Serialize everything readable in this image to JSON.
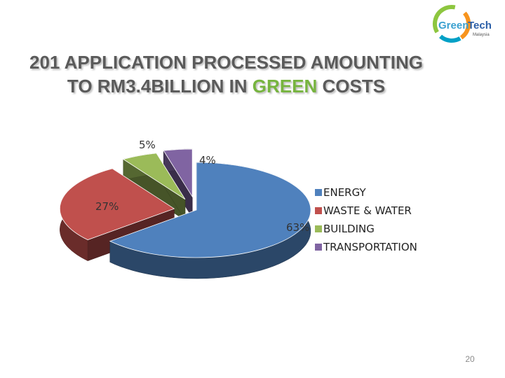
{
  "logo": {
    "line1": "Green",
    "line2": "Tech",
    "line3": "Malaysia"
  },
  "title": {
    "line1": "201 APPLICATION PROCESSED AMOUNTING",
    "line2_before": "TO RM3.4BILLION IN ",
    "line2_accent": "GREEN",
    "line2_after": " COSTS"
  },
  "chart_data": {
    "type": "pie",
    "title": "",
    "categories": [
      "ENERGY",
      "WASTE & WATER",
      "BUILDING",
      "TRANSPORTATION"
    ],
    "values": [
      63,
      27,
      5,
      4
    ],
    "labels": [
      "63%",
      "27%",
      "5%",
      "4%"
    ],
    "colors": [
      "#4f81bd",
      "#c0504d",
      "#9bbb59",
      "#8064a2"
    ],
    "legend_position": "right",
    "style": "3d-exploded"
  },
  "page_number": "20"
}
